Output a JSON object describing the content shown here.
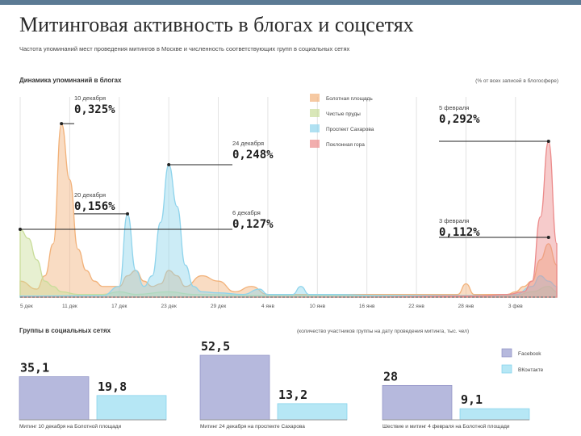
{
  "title": "Митинговая активность в блогах и соцсетях",
  "subtitle": "Частота упоминаний мест проведения митингов в Москве и численность соответствующих групп в социальных сетях",
  "section1": {
    "label": "Динамика упоминаний в блогах",
    "note": "(% от всех записей в блогосфере)"
  },
  "section2": {
    "label": "Группы в социальных сетях",
    "note": "(количество участников группы на дату проведения митинга, тыс. чел)"
  },
  "colors": {
    "bolotnaya": "#f2b27a",
    "chistye": "#c9dd9a",
    "sakharova": "#8fd4ec",
    "poklonnaya": "#ec8b8b",
    "facebook": "#b6b9dd",
    "vkontakte": "#b6e7f5",
    "annotation": "#222222",
    "grid": "#e3e3e3"
  },
  "chart_data": [
    {
      "type": "area",
      "title": "Динамика упоминаний в блогах",
      "ylabel": "(% от всех записей в блогосфере)",
      "x_ticks": [
        "5 дек",
        "11 дек",
        "17 дек",
        "23 дек",
        "29 дек",
        "4 янв",
        "10 янв",
        "16 янв",
        "22 янв",
        "28 янв",
        "3 фев"
      ],
      "ylim": [
        0,
        0.36
      ],
      "series": [
        {
          "name": "Болотная площадь",
          "color": "#f2b27a",
          "points": [
            [
              0,
              0.03
            ],
            [
              2,
              0.015
            ],
            [
              3,
              0.04
            ],
            [
              4,
              0.1
            ],
            [
              5,
              0.325
            ],
            [
              6,
              0.22
            ],
            [
              7,
              0.09
            ],
            [
              8,
              0.05
            ],
            [
              9,
              0.03
            ],
            [
              10,
              0.02
            ],
            [
              12,
              0.02
            ],
            [
              13,
              0.04
            ],
            [
              14,
              0.05
            ],
            [
              15,
              0.03
            ],
            [
              16,
              0.02
            ],
            [
              17,
              0.025
            ],
            [
              18,
              0.05
            ],
            [
              19,
              0.04
            ],
            [
              20,
              0.02
            ],
            [
              22,
              0.04
            ],
            [
              24,
              0.03
            ],
            [
              26,
              0.01
            ],
            [
              28,
              0.02
            ],
            [
              30,
              0.005
            ],
            [
              36,
              0.005
            ],
            [
              42,
              0.005
            ],
            [
              48,
              0.005
            ],
            [
              53,
              0.005
            ],
            [
              54,
              0.025
            ],
            [
              55,
              0.005
            ],
            [
              57,
              0.005
            ],
            [
              59,
              0.005
            ],
            [
              60,
              0.01
            ],
            [
              61,
              0.02
            ],
            [
              62,
              0.03
            ],
            [
              63,
              0.07
            ],
            [
              64,
              0.1
            ],
            [
              65,
              0.06
            ]
          ]
        },
        {
          "name": "Чистые пруды",
          "color": "#c9dd9a",
          "points": [
            [
              0,
              0.127
            ],
            [
              1,
              0.11
            ],
            [
              2,
              0.07
            ],
            [
              3,
              0.03
            ],
            [
              4,
              0.02
            ],
            [
              5,
              0.01
            ],
            [
              7,
              0.005
            ],
            [
              10,
              0.005
            ],
            [
              12,
              0.01
            ],
            [
              14,
              0.005
            ],
            [
              18,
              0.01
            ],
            [
              21,
              0.005
            ],
            [
              30,
              0.003
            ],
            [
              45,
              0.003
            ],
            [
              55,
              0.003
            ],
            [
              60,
              0.003
            ],
            [
              62,
              0.01
            ],
            [
              64,
              0.02
            ],
            [
              65,
              0.01
            ]
          ]
        },
        {
          "name": "Проспект Сахарова",
          "color": "#8fd4ec",
          "points": [
            [
              0,
              0.002
            ],
            [
              10,
              0.003
            ],
            [
              12,
              0.02
            ],
            [
              13,
              0.156
            ],
            [
              14,
              0.05
            ],
            [
              15,
              0.02
            ],
            [
              16,
              0.04
            ],
            [
              17,
              0.14
            ],
            [
              18,
              0.248
            ],
            [
              19,
              0.17
            ],
            [
              20,
              0.06
            ],
            [
              21,
              0.02
            ],
            [
              22,
              0.01
            ],
            [
              24,
              0.008
            ],
            [
              27,
              0.005
            ],
            [
              29,
              0.015
            ],
            [
              30,
              0.005
            ],
            [
              33,
              0.005
            ],
            [
              34,
              0.02
            ],
            [
              35,
              0.005
            ],
            [
              38,
              0.005
            ],
            [
              44,
              0.003
            ],
            [
              50,
              0.003
            ],
            [
              57,
              0.003
            ],
            [
              60,
              0.005
            ],
            [
              62,
              0.02
            ],
            [
              63,
              0.04
            ],
            [
              64,
              0.03
            ],
            [
              65,
              0.02
            ]
          ]
        },
        {
          "name": "Поклонная гора",
          "color": "#ec8b8b",
          "points": [
            [
              0,
              0.0
            ],
            [
              40,
              0.0
            ],
            [
              55,
              0.002
            ],
            [
              59,
              0.005
            ],
            [
              61,
              0.01
            ],
            [
              62,
              0.03
            ],
            [
              63,
              0.15
            ],
            [
              64,
              0.292
            ],
            [
              65,
              0.1
            ]
          ]
        }
      ],
      "annotations": [
        {
          "date": "10 декабря",
          "value": "0,325%"
        },
        {
          "date": "20 декабря",
          "value": "0,156%"
        },
        {
          "date": "24 декабря",
          "value": "0,248%"
        },
        {
          "date": "6 декабря",
          "value": "0,127%"
        },
        {
          "date": "5 февраля",
          "value": "0,292%"
        },
        {
          "date": "3 февраля",
          "value": "0,112%"
        }
      ],
      "legend_position": "top-right"
    },
    {
      "type": "bar",
      "title": "Группы в социальных сетях",
      "ylabel": "(количество участников группы на дату проведения митинга, тыс. чел)",
      "series_names": [
        "Facebook",
        "ВКонтакте"
      ],
      "groups": [
        {
          "caption": "Митинг 10 декабря на Болотной площади",
          "facebook": 35.1,
          "vkontakte": 19.8,
          "facebook_label": "35,1",
          "vkontakte_label": "19,8"
        },
        {
          "caption": "Митинг 24 декабря на проспекте Сахарова",
          "facebook": 52.5,
          "vkontakte": 13.2,
          "facebook_label": "52,5",
          "vkontakte_label": "13,2"
        },
        {
          "caption": "Шествие и митинг 4 февраля на Болотной площади",
          "facebook": 28,
          "vkontakte": 9.1,
          "facebook_label": "28",
          "vkontakte_label": "9,1"
        }
      ]
    }
  ]
}
